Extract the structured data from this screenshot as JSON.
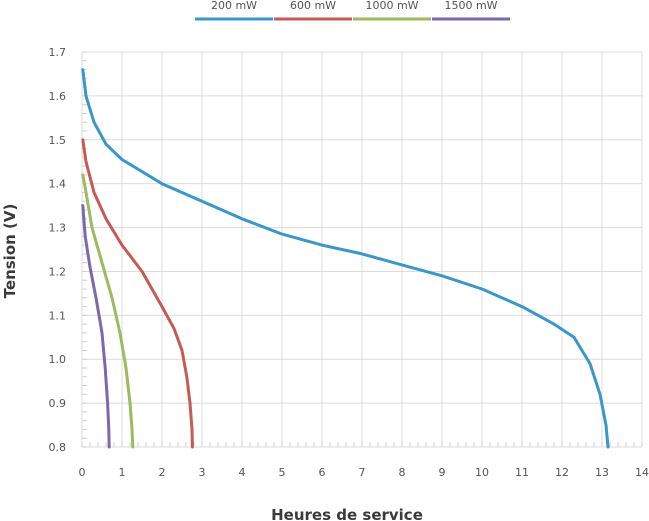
{
  "chart_data": {
    "type": "line",
    "title": "",
    "xlabel": "Heures de service",
    "ylabel": "Tension (V)",
    "xlim": [
      0,
      14
    ],
    "ylim": [
      0.8,
      1.7
    ],
    "grid": true,
    "legend_position": "top-center",
    "x_ticks": [
      "0",
      "1",
      "2",
      "3",
      "4",
      "5",
      "6",
      "7",
      "8",
      "9",
      "10",
      "11",
      "12",
      "13",
      "14"
    ],
    "y_ticks": [
      "0.8",
      "0.9",
      "1.0",
      "1.1",
      "1.2",
      "1.3",
      "1.4",
      "1.5",
      "1.6",
      "1.7"
    ],
    "series": [
      {
        "name": "200 mW",
        "color": "#3a97c9",
        "points": [
          [
            0.02,
            1.66
          ],
          [
            0.1,
            1.6
          ],
          [
            0.3,
            1.54
          ],
          [
            0.6,
            1.49
          ],
          [
            1,
            1.455
          ],
          [
            2,
            1.4
          ],
          [
            3,
            1.36
          ],
          [
            4,
            1.32
          ],
          [
            5,
            1.285
          ],
          [
            6,
            1.26
          ],
          [
            7,
            1.24
          ],
          [
            8,
            1.215
          ],
          [
            9,
            1.19
          ],
          [
            10,
            1.16
          ],
          [
            11,
            1.12
          ],
          [
            11.8,
            1.08
          ],
          [
            12.3,
            1.05
          ],
          [
            12.7,
            0.99
          ],
          [
            12.95,
            0.92
          ],
          [
            13.1,
            0.85
          ],
          [
            13.15,
            0.8
          ]
        ]
      },
      {
        "name": "600 mW",
        "color": "#c85a55",
        "points": [
          [
            0.02,
            1.5
          ],
          [
            0.1,
            1.45
          ],
          [
            0.3,
            1.38
          ],
          [
            0.6,
            1.32
          ],
          [
            1,
            1.26
          ],
          [
            1.5,
            1.2
          ],
          [
            2,
            1.12
          ],
          [
            2.3,
            1.07
          ],
          [
            2.5,
            1.02
          ],
          [
            2.62,
            0.96
          ],
          [
            2.7,
            0.9
          ],
          [
            2.75,
            0.84
          ],
          [
            2.76,
            0.8
          ]
        ]
      },
      {
        "name": "1000 mW",
        "color": "#9dbb5e",
        "points": [
          [
            0.02,
            1.42
          ],
          [
            0.1,
            1.38
          ],
          [
            0.25,
            1.3
          ],
          [
            0.5,
            1.22
          ],
          [
            0.75,
            1.14
          ],
          [
            0.95,
            1.06
          ],
          [
            1.1,
            0.98
          ],
          [
            1.2,
            0.9
          ],
          [
            1.25,
            0.84
          ],
          [
            1.27,
            0.8
          ]
        ]
      },
      {
        "name": "1500 mW",
        "color": "#7a6aad",
        "points": [
          [
            0.02,
            1.35
          ],
          [
            0.08,
            1.28
          ],
          [
            0.2,
            1.21
          ],
          [
            0.35,
            1.14
          ],
          [
            0.5,
            1.06
          ],
          [
            0.58,
            0.98
          ],
          [
            0.64,
            0.9
          ],
          [
            0.67,
            0.84
          ],
          [
            0.68,
            0.8
          ]
        ]
      }
    ]
  }
}
